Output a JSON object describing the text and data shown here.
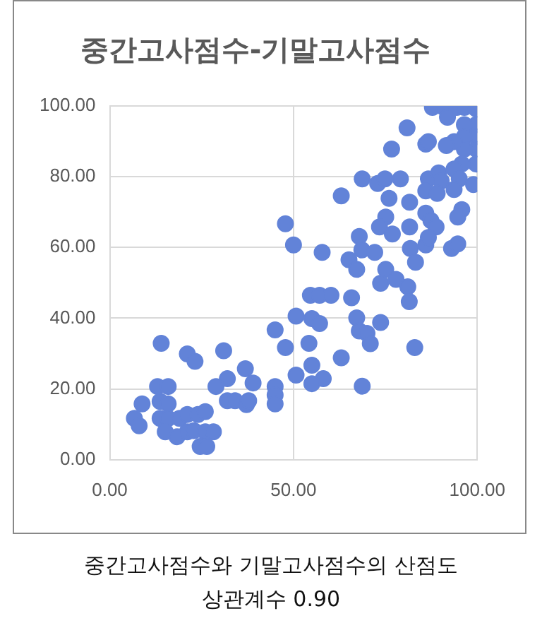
{
  "chart_data": {
    "type": "scatter",
    "title": "중간고사점수-기말고사점수",
    "annotations": [
      "중간고사점수와 기말고사점수의 산점도",
      "상관계수 0.90"
    ],
    "xlim": [
      0,
      100
    ],
    "xticks": [
      {
        "value": 0,
        "label": "0.00"
      },
      {
        "value": 50,
        "label": "50.00"
      },
      {
        "value": 100,
        "label": "100.00"
      }
    ],
    "ylim": [
      0,
      100
    ],
    "yticks": [
      {
        "value": 0,
        "label": "0.00"
      },
      {
        "value": 20,
        "label": "20.00"
      },
      {
        "value": 40,
        "label": "40.00"
      },
      {
        "value": 60,
        "label": "60.00"
      },
      {
        "value": 80,
        "label": "80.00"
      },
      {
        "value": 100,
        "label": "100.00"
      }
    ],
    "grid": true,
    "legend": false,
    "marker": "circle",
    "series": [
      {
        "color": "#6283d8",
        "x": [
          47.8,
          50,
          50.7,
          45,
          47.8,
          50.7,
          14,
          21.1,
          23.2,
          31,
          32,
          36.9,
          39,
          28.9,
          13,
          15.9,
          8.8,
          13.7,
          15.9,
          6.7,
          8,
          13.7,
          15.9,
          19,
          21.1,
          24,
          26,
          15.1,
          18.3,
          21.1,
          22.9,
          26,
          28.2,
          24.6,
          26.4,
          32,
          34.1,
          37.2,
          37.8,
          45,
          45,
          45,
          87.8,
          90.9,
          91.9,
          94.4,
          96.5,
          99.7,
          99.7,
          96.5,
          99.7,
          96.5,
          99.7,
          96.5,
          99.7,
          95.8,
          93.7,
          91.6,
          86,
          86.7,
          80.9,
          76.7,
          68.7,
          72.9,
          74.9,
          79.1,
          86.7,
          89.5,
          90.2,
          93.7,
          95.1,
          99,
          93.7,
          86,
          89.1,
          63,
          76,
          81.6,
          95.8,
          94.7,
          86,
          87.4,
          88.8,
          75.1,
          73.4,
          76.9,
          81.6,
          57.8,
          67.9,
          68.6,
          72.1,
          65.1,
          67.2,
          81.8,
          83.2,
          86,
          86.7,
          93,
          94.7,
          75.1,
          73.7,
          77.9,
          81.1,
          81.5,
          54.6,
          57.1,
          60.2,
          65.8,
          55,
          57.1,
          67.2,
          73.7,
          67.9,
          70,
          70.9,
          83,
          54.2,
          63,
          55,
          58.1,
          55,
          68.7
        ],
        "values": [
          66.7,
          60.7,
          40.6,
          36.7,
          31.7,
          23.9,
          32.9,
          29.9,
          27.8,
          30.8,
          22.9,
          25.7,
          21.7,
          20.7,
          20.7,
          20.7,
          15.8,
          16.5,
          15.8,
          11.7,
          9.6,
          11.7,
          11.7,
          11.7,
          12.8,
          12.8,
          13.6,
          7.9,
          6.5,
          7.9,
          8.2,
          7.9,
          7.9,
          3.75,
          3.75,
          16.7,
          16.7,
          15.6,
          16.7,
          20.7,
          18.3,
          15.8,
          99.6,
          99.6,
          96.8,
          99.6,
          99.6,
          99.2,
          94.7,
          94.7,
          91.3,
          91.3,
          87.8,
          87.8,
          83.6,
          83.6,
          89.9,
          88.8,
          89.2,
          89.9,
          93.8,
          87.8,
          79.4,
          78.1,
          79.4,
          79.4,
          79.4,
          81.1,
          78.8,
          82.2,
          79.4,
          77.8,
          76.4,
          76,
          75.3,
          74.6,
          73.9,
          72.8,
          70.7,
          68.6,
          69.7,
          67.6,
          65.8,
          68.6,
          65.8,
          63.8,
          65.8,
          58.6,
          63.1,
          59.3,
          58.6,
          56.5,
          53.8,
          59.7,
          55.8,
          60.7,
          62.8,
          59.7,
          61,
          53.8,
          49.9,
          51,
          48.9,
          44.7,
          46.5,
          46.5,
          46.5,
          45.8,
          39.9,
          38.5,
          40.1,
          38.8,
          36.4,
          35.7,
          32.8,
          31.7,
          32.9,
          28.8,
          26.7,
          22.9,
          21.5,
          20.8
        ]
      }
    ]
  }
}
